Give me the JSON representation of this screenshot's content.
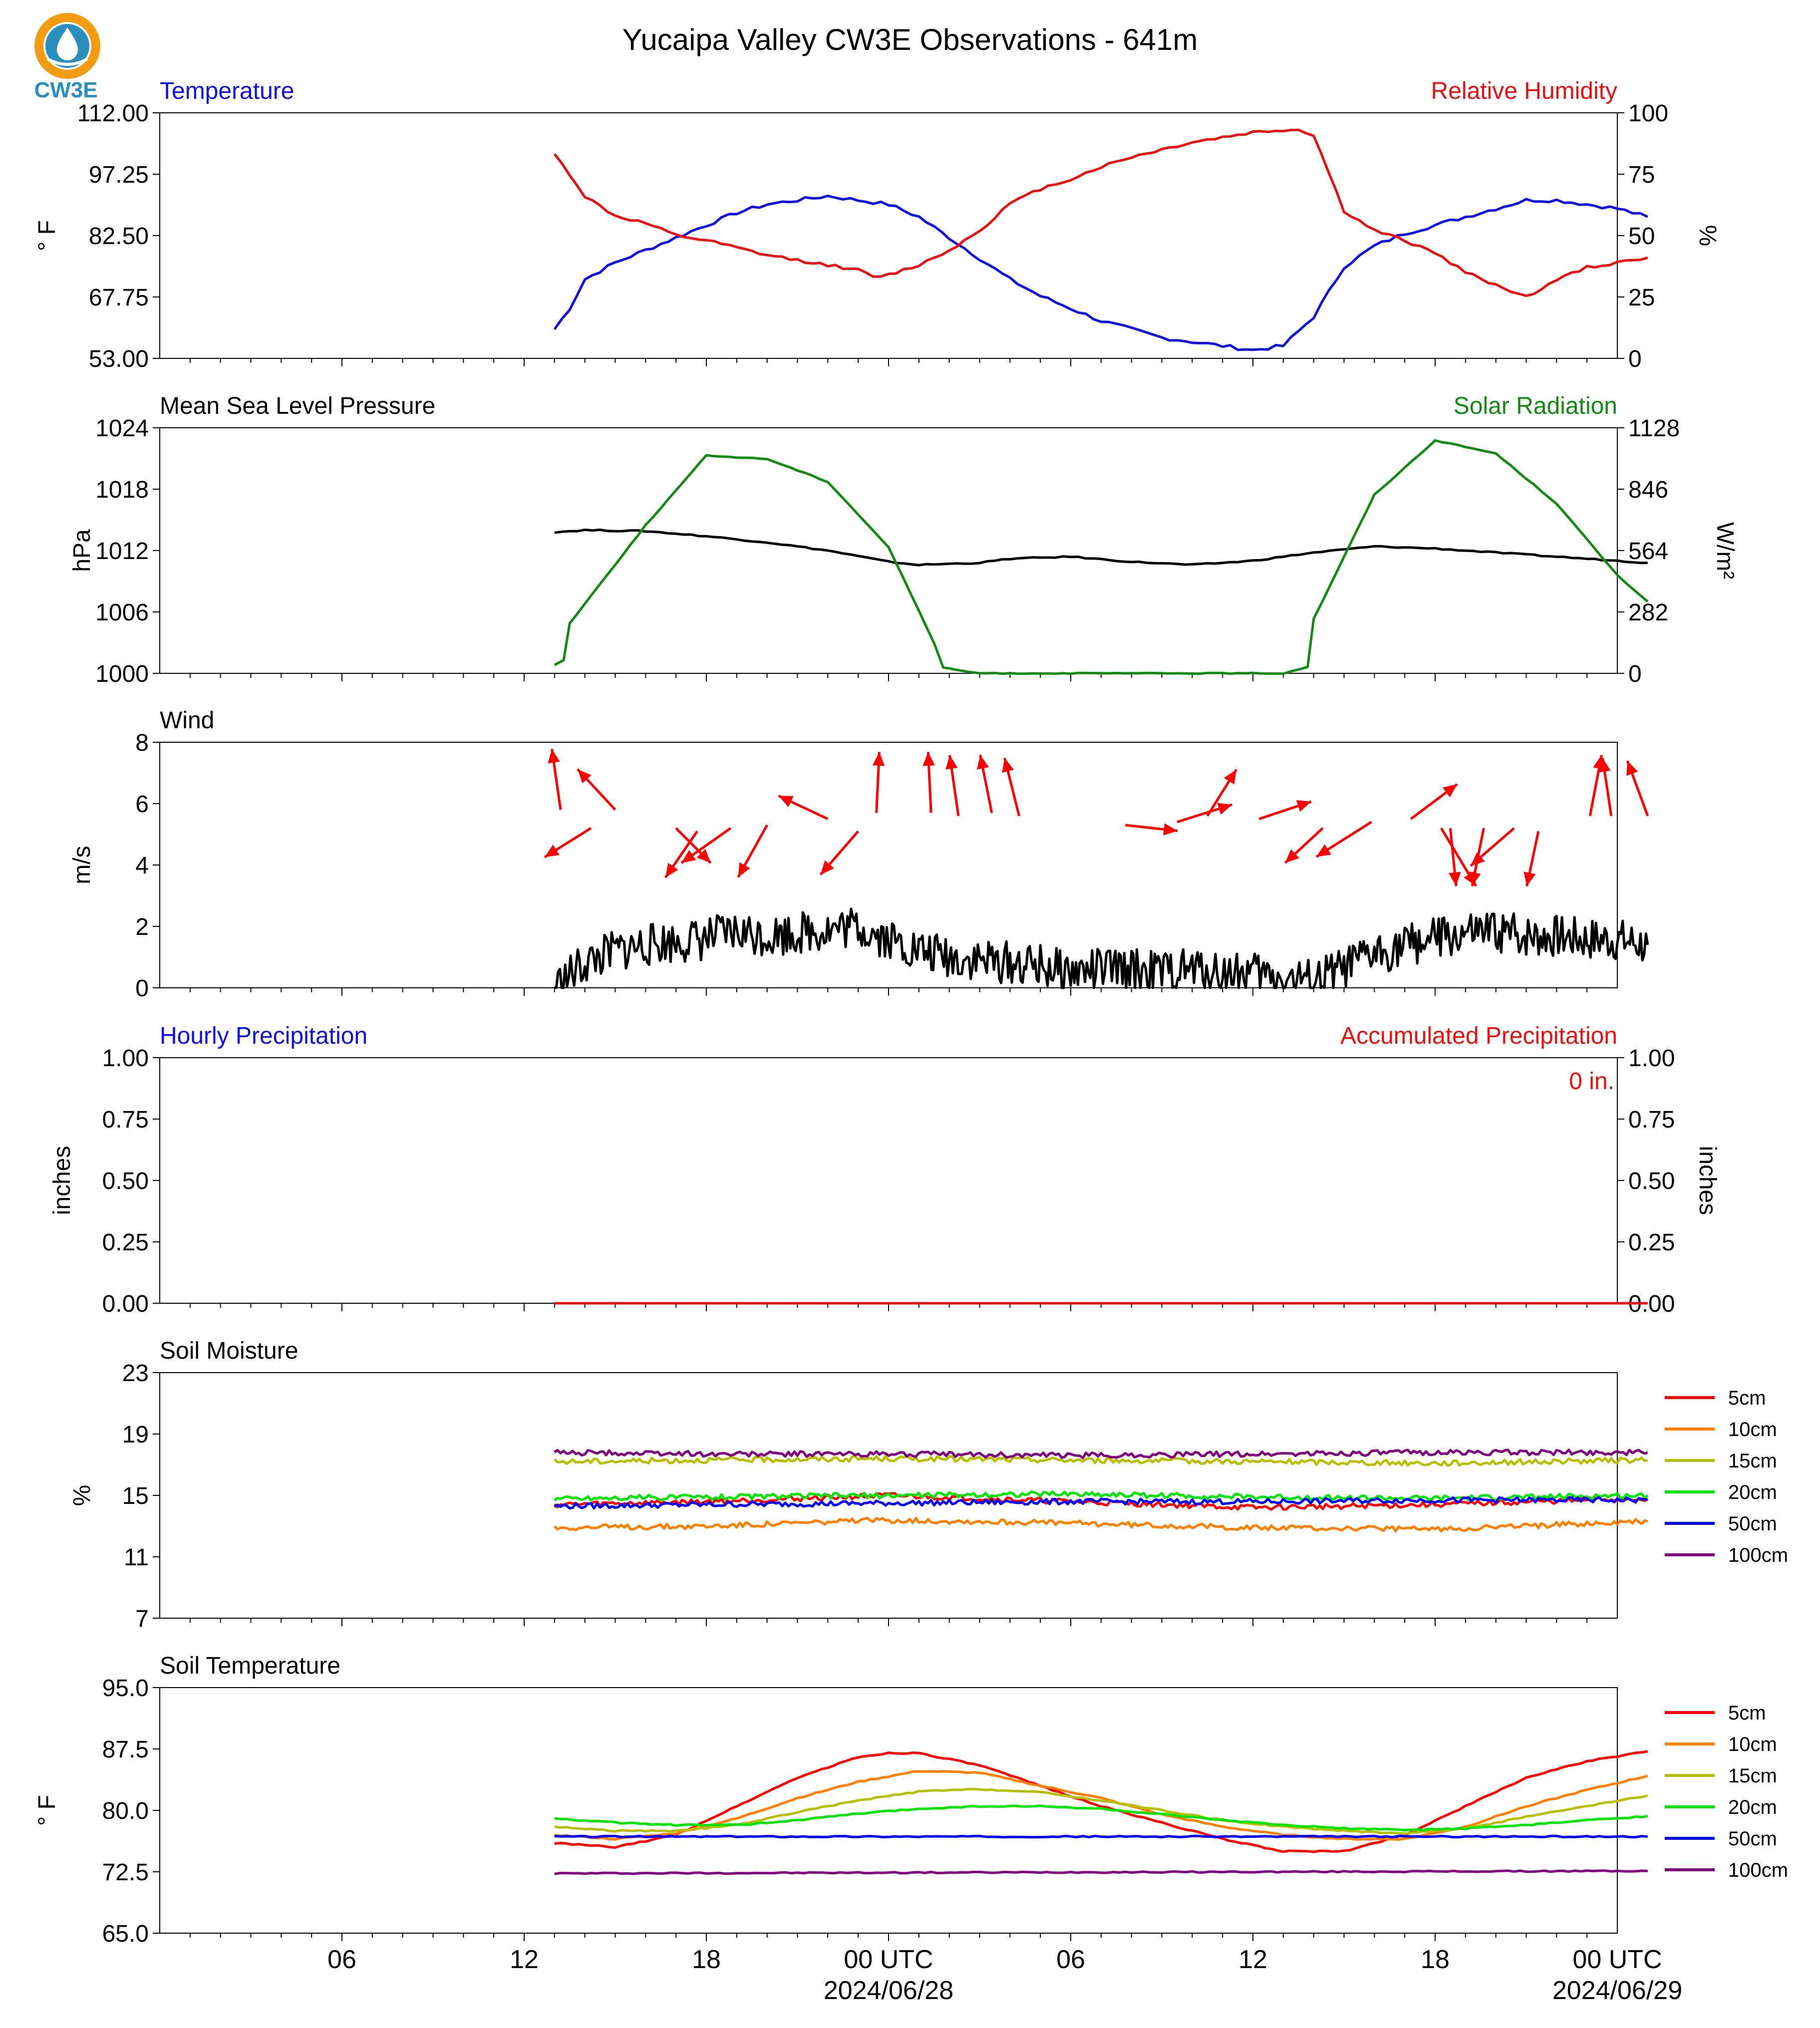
{
  "title": "Yucaipa Valley CW3E Observations - 641m",
  "logo": {
    "text": "CW3E",
    "icon": "cw3e-droplet-logo",
    "color": "#2a8fbd",
    "accent": "#f39c12"
  },
  "x_axis": {
    "hours": [
      -24,
      24
    ],
    "ticks": [
      {
        "hour": -18,
        "label": "06"
      },
      {
        "hour": -12,
        "label": "12"
      },
      {
        "hour": -6,
        "label": "18"
      },
      {
        "hour": 0,
        "label": "00 UTC",
        "date": "2024/06/28"
      },
      {
        "hour": 6,
        "label": "06"
      },
      {
        "hour": 12,
        "label": "12"
      },
      {
        "hour": 18,
        "label": "18"
      },
      {
        "hour": 24,
        "label": "00 UTC",
        "date": "2024/06/29"
      }
    ]
  },
  "chart_data": [
    {
      "id": "temp-rh",
      "type": "line",
      "left_title": "Temperature",
      "left_title_color": "#1010e0",
      "right_title": "Relative Humidity",
      "right_title_color": "#e81010",
      "ylabel": "° F",
      "ylim": [
        53,
        112
      ],
      "yticks": [
        "53.00",
        "67.75",
        "82.50",
        "97.25",
        "112.00"
      ],
      "y2label": "%",
      "y2lim": [
        0,
        100
      ],
      "y2ticks": [
        "0",
        "25",
        "50",
        "75",
        "100"
      ],
      "series": [
        {
          "name": "Temperature",
          "axis": "left",
          "color": "#1010e0",
          "x": [
            -11,
            -10.5,
            -10,
            -9,
            -8,
            -7,
            -6,
            -5,
            -4,
            -3,
            -2,
            -1,
            0,
            1,
            2,
            3,
            4,
            5,
            6,
            7,
            8,
            9,
            10,
            11,
            12,
            13,
            14,
            15,
            16,
            17,
            18,
            19,
            20,
            21,
            22,
            23,
            24,
            25
          ],
          "y": [
            60,
            65,
            72,
            76,
            79,
            82,
            85,
            88,
            90,
            91,
            92,
            91,
            90,
            87,
            82,
            77,
            72,
            68,
            65,
            62,
            60,
            58,
            57,
            56,
            55,
            56,
            63,
            75,
            80,
            83,
            85,
            87,
            89,
            91,
            91,
            90,
            89,
            87
          ]
        },
        {
          "name": "Relative Humidity",
          "axis": "right",
          "color": "#e81010",
          "x": [
            -11,
            -10.5,
            -10,
            -9,
            -8,
            -7,
            -6,
            -5,
            -4,
            -3,
            -2,
            -1,
            -0.5,
            0,
            1,
            2,
            3,
            4,
            5,
            6,
            7,
            8,
            9,
            10,
            11,
            12,
            13,
            13.5,
            14,
            15,
            16,
            17,
            18,
            19,
            20,
            21,
            22,
            23,
            24,
            25
          ],
          "y": [
            83,
            75,
            66,
            58,
            55,
            50,
            48,
            45,
            42,
            40,
            38,
            36,
            33,
            34,
            38,
            44,
            52,
            63,
            69,
            73,
            78,
            82,
            85,
            88,
            90,
            92,
            93,
            93,
            91,
            60,
            52,
            48,
            43,
            35,
            30,
            25,
            32,
            37,
            39,
            41
          ]
        }
      ]
    },
    {
      "id": "pressure-solar",
      "type": "line",
      "left_title": "Mean Sea Level Pressure",
      "left_title_color": "#000000",
      "right_title": "Solar Radiation",
      "right_title_color": "#138a13",
      "ylabel": "hPa",
      "ylim": [
        1000,
        1024
      ],
      "yticks": [
        "1000",
        "1006",
        "1012",
        "1018",
        "1024"
      ],
      "y2label": "W/m²",
      "y2lim": [
        0,
        1128
      ],
      "y2ticks": [
        "0",
        "282",
        "564",
        "846",
        "1128"
      ],
      "series": [
        {
          "name": "Mean Sea Level Pressure",
          "axis": "left",
          "color": "#000000",
          "x": [
            -11,
            -10,
            -8,
            -6,
            -4,
            -2,
            0,
            1,
            3,
            4,
            6,
            8,
            10,
            12,
            14,
            16,
            18,
            20,
            22,
            24,
            25
          ],
          "y": [
            1013.8,
            1014.0,
            1013.9,
            1013.4,
            1012.8,
            1012.0,
            1010.9,
            1010.6,
            1010.8,
            1011.2,
            1011.4,
            1010.9,
            1010.6,
            1011.0,
            1011.8,
            1012.4,
            1012.2,
            1011.8,
            1011.4,
            1011.0,
            1010.8
          ]
        },
        {
          "name": "Solar Radiation",
          "axis": "right",
          "color": "#138a13",
          "x": [
            -11,
            -10.7,
            -10.5,
            -8,
            -6,
            -4,
            -2,
            0,
            1.5,
            1.8,
            3,
            6,
            9,
            12,
            13,
            13.8,
            14,
            16,
            18,
            20,
            22,
            24,
            25
          ],
          "y": [
            40,
            60,
            230,
            680,
            1000,
            985,
            880,
            580,
            140,
            25,
            0,
            0,
            0,
            0,
            0,
            30,
            250,
            820,
            1070,
            1010,
            780,
            450,
            330
          ]
        }
      ]
    },
    {
      "id": "wind",
      "type": "line",
      "left_title": "Wind",
      "left_title_color": "#000000",
      "ylabel": "m/s",
      "ylim": [
        0,
        8
      ],
      "yticks": [
        "0",
        "2",
        "4",
        "6",
        "8"
      ],
      "series": [
        {
          "name": "Wind speed",
          "axis": "left",
          "color": "#000000",
          "x": [
            -11,
            -10,
            -9,
            -8,
            -7,
            -6,
            -5,
            -4,
            -3,
            -2,
            -1,
            0,
            1,
            2,
            3,
            4,
            5,
            6,
            7,
            8,
            9,
            10,
            11,
            12,
            13,
            14,
            15,
            16,
            17,
            18,
            19,
            20,
            21,
            22,
            23,
            24,
            25
          ],
          "y": [
            0,
            0.8,
            1.2,
            1.4,
            1.5,
            1.6,
            1.8,
            1.7,
            1.8,
            1.9,
            2.0,
            1.6,
            1.2,
            1.0,
            0.9,
            0.8,
            0.7,
            0.5,
            0.6,
            0.6,
            0.5,
            0.6,
            0.5,
            0.5,
            0.3,
            0.2,
            0.6,
            1.1,
            1.4,
            1.6,
            1.7,
            1.8,
            1.7,
            1.7,
            1.6,
            1.6,
            1.4
          ]
        },
        {
          "name": "Wind direction",
          "axis": "left",
          "color": "#ff0000",
          "arrows": [
            {
              "x": -10.8,
              "y": 5.8,
              "dx": -0.3,
              "dy": 2.1
            },
            {
              "x": -9.8,
              "y": 5.2,
              "dx": -1.6,
              "dy": -1.0
            },
            {
              "x": -9,
              "y": 5.8,
              "dx": -1.3,
              "dy": 1.4
            },
            {
              "x": -7,
              "y": 5.2,
              "dx": 1.2,
              "dy": -1.2
            },
            {
              "x": -6.3,
              "y": 5.1,
              "dx": -1.1,
              "dy": -1.6
            },
            {
              "x": -5.2,
              "y": 5.2,
              "dx": -1.7,
              "dy": -1.2
            },
            {
              "x": -4,
              "y": 5.3,
              "dx": -1.0,
              "dy": -1.8
            },
            {
              "x": -2,
              "y": 5.5,
              "dx": -1.7,
              "dy": 0.8
            },
            {
              "x": -1,
              "y": 5.1,
              "dx": -1.3,
              "dy": -1.5
            },
            {
              "x": -0.4,
              "y": 5.7,
              "dx": 0.1,
              "dy": 2.1
            },
            {
              "x": 1.4,
              "y": 5.7,
              "dx": -0.1,
              "dy": 2.1
            },
            {
              "x": 2.3,
              "y": 5.6,
              "dx": -0.3,
              "dy": 2.1
            },
            {
              "x": 3.4,
              "y": 5.7,
              "dx": -0.4,
              "dy": 2.0
            },
            {
              "x": 4.3,
              "y": 5.6,
              "dx": -0.5,
              "dy": 2.0
            },
            {
              "x": 7.8,
              "y": 5.3,
              "dx": 1.8,
              "dy": -0.2
            },
            {
              "x": 9.5,
              "y": 5.4,
              "dx": 1.9,
              "dy": 0.6
            },
            {
              "x": 10.5,
              "y": 5.6,
              "dx": 1.0,
              "dy": 1.6
            },
            {
              "x": 12.2,
              "y": 5.5,
              "dx": 1.8,
              "dy": 0.6
            },
            {
              "x": 14.3,
              "y": 5.2,
              "dx": -1.3,
              "dy": -1.2
            },
            {
              "x": 15.9,
              "y": 5.4,
              "dx": -1.9,
              "dy": -1.2
            },
            {
              "x": 17.2,
              "y": 5.5,
              "dx": 1.6,
              "dy": 1.2
            },
            {
              "x": 18.2,
              "y": 5.2,
              "dx": 1.2,
              "dy": -2.0
            },
            {
              "x": 18.5,
              "y": 5.2,
              "dx": 0.2,
              "dy": -2.0
            },
            {
              "x": 19.6,
              "y": 5.2,
              "dx": -0.4,
              "dy": -2.0
            },
            {
              "x": 20.6,
              "y": 5.2,
              "dx": -1.5,
              "dy": -1.3
            },
            {
              "x": 21.4,
              "y": 5.1,
              "dx": -0.4,
              "dy": -1.9
            },
            {
              "x": 23.1,
              "y": 5.6,
              "dx": 0.4,
              "dy": 2.1
            },
            {
              "x": 23.8,
              "y": 5.6,
              "dx": -0.3,
              "dy": 2.0
            },
            {
              "x": 25,
              "y": 5.6,
              "dx": -0.7,
              "dy": 1.9
            }
          ]
        }
      ]
    },
    {
      "id": "precip",
      "type": "line",
      "left_title": "Hourly Precipitation",
      "left_title_color": "#1010e0",
      "right_title": "Accumulated Precipitation",
      "right_title_color": "#e81010",
      "ylabel": "inches",
      "ylim": [
        0,
        1
      ],
      "yticks": [
        "0.00",
        "0.25",
        "0.50",
        "0.75",
        "1.00"
      ],
      "y2label": "inches",
      "y2lim": [
        0,
        1
      ],
      "y2ticks": [
        "0.00",
        "0.25",
        "0.50",
        "0.75",
        "1.00"
      ],
      "annotation": {
        "text": "0 in.",
        "color": "#e81010"
      },
      "series": [
        {
          "name": "Hourly Precipitation",
          "axis": "left",
          "color": "#1010e0",
          "x": [
            -11,
            25
          ],
          "y": [
            0,
            0
          ]
        },
        {
          "name": "Accumulated Precipitation",
          "axis": "right",
          "color": "#e81010",
          "x": [
            -11,
            25
          ],
          "y": [
            0,
            0
          ]
        }
      ]
    },
    {
      "id": "soil-moisture",
      "type": "line",
      "left_title": "Soil Moisture",
      "left_title_color": "#000000",
      "ylabel": "%",
      "ylim": [
        7,
        23
      ],
      "yticks": [
        "7",
        "11",
        "15",
        "19",
        "23"
      ],
      "legend": "right",
      "series": [
        {
          "name": "5cm",
          "color": "#ff0000",
          "x": [
            -11,
            -6,
            0,
            6,
            12,
            18,
            25
          ],
          "y": [
            14.4,
            14.6,
            15.0,
            14.6,
            14.2,
            14.4,
            14.8
          ]
        },
        {
          "name": "10cm",
          "color": "#ff7f00",
          "x": [
            -11,
            -6,
            0,
            6,
            12,
            18,
            25
          ],
          "y": [
            12.9,
            13.0,
            13.4,
            13.2,
            12.9,
            12.8,
            13.3
          ]
        },
        {
          "name": "15cm",
          "color": "#b8bf00",
          "x": [
            -11,
            -6,
            0,
            6,
            12,
            18,
            25
          ],
          "y": [
            17.2,
            17.3,
            17.4,
            17.3,
            17.2,
            17.1,
            17.3
          ]
        },
        {
          "name": "20cm",
          "color": "#00e600",
          "x": [
            -11,
            -6,
            0,
            6,
            12,
            18,
            25
          ],
          "y": [
            14.8,
            14.9,
            15.0,
            15.1,
            14.9,
            14.8,
            15.0
          ]
        },
        {
          "name": "50cm",
          "color": "#0000ff",
          "x": [
            -11,
            -6,
            0,
            6,
            12,
            18,
            25
          ],
          "y": [
            14.3,
            14.4,
            14.5,
            14.6,
            14.6,
            14.7,
            14.7
          ]
        },
        {
          "name": "100cm",
          "color": "#800080",
          "x": [
            -11,
            -6,
            0,
            6,
            12,
            18,
            25
          ],
          "y": [
            17.8,
            17.7,
            17.7,
            17.6,
            17.7,
            17.8,
            17.8
          ]
        }
      ]
    },
    {
      "id": "soil-temp",
      "type": "line",
      "left_title": "Soil Temperature",
      "left_title_color": "#000000",
      "ylabel": "° F",
      "ylim": [
        65,
        95
      ],
      "yticks": [
        "65.0",
        "72.5",
        "80.0",
        "87.5",
        "95.0"
      ],
      "legend": "right",
      "series": [
        {
          "name": "5cm",
          "color": "#ff0000",
          "x": [
            -11,
            -9,
            -7,
            -5,
            -3,
            -1,
            0,
            1,
            3,
            5,
            7,
            9,
            11,
            13,
            15,
            17,
            19,
            21,
            23,
            25
          ],
          "y": [
            76,
            75.5,
            77,
            80.5,
            84,
            86.5,
            87,
            87,
            85.5,
            83,
            80.5,
            78.5,
            76.5,
            75,
            75,
            77,
            80.5,
            84,
            86,
            87.2
          ]
        },
        {
          "name": "10cm",
          "color": "#ff7f00",
          "x": [
            -11,
            -9,
            -7,
            -5,
            -3,
            -1,
            1,
            3,
            5,
            7,
            9,
            11,
            13,
            15,
            17,
            19,
            21,
            23,
            25
          ],
          "y": [
            77,
            76.5,
            77.2,
            79,
            81.5,
            83.5,
            84.8,
            84.6,
            83,
            81.5,
            79.5,
            78,
            77,
            76.5,
            76.5,
            78,
            80.5,
            82.5,
            84.2
          ]
        },
        {
          "name": "15cm",
          "color": "#b8bf00",
          "x": [
            -11,
            -9,
            -7,
            -5,
            -3,
            -1,
            1,
            3,
            5,
            7,
            9,
            11,
            13,
            15,
            17,
            19,
            21,
            23,
            25
          ],
          "y": [
            78,
            77.5,
            77.5,
            78.2,
            79.8,
            81.2,
            82.3,
            82.6,
            82.2,
            81.2,
            80,
            78.8,
            78,
            77.5,
            77.2,
            77.8,
            79.2,
            80.5,
            81.8
          ]
        },
        {
          "name": "20cm",
          "color": "#00e600",
          "x": [
            -11,
            -9,
            -7,
            -5,
            -3,
            -1,
            1,
            3,
            5,
            7,
            9,
            11,
            13,
            15,
            17,
            19,
            21,
            23,
            25
          ],
          "y": [
            79,
            78.5,
            78.2,
            78.2,
            78.8,
            79.6,
            80.2,
            80.5,
            80.5,
            80.2,
            79.5,
            78.8,
            78.2,
            77.8,
            77.6,
            77.8,
            78.2,
            78.8,
            79.3
          ]
        },
        {
          "name": "50cm",
          "color": "#0000ff",
          "x": [
            -11,
            25
          ],
          "y": [
            76.8,
            76.8
          ]
        },
        {
          "name": "100cm",
          "color": "#800080",
          "x": [
            -11,
            25
          ],
          "y": [
            72.3,
            72.6
          ]
        }
      ]
    }
  ]
}
